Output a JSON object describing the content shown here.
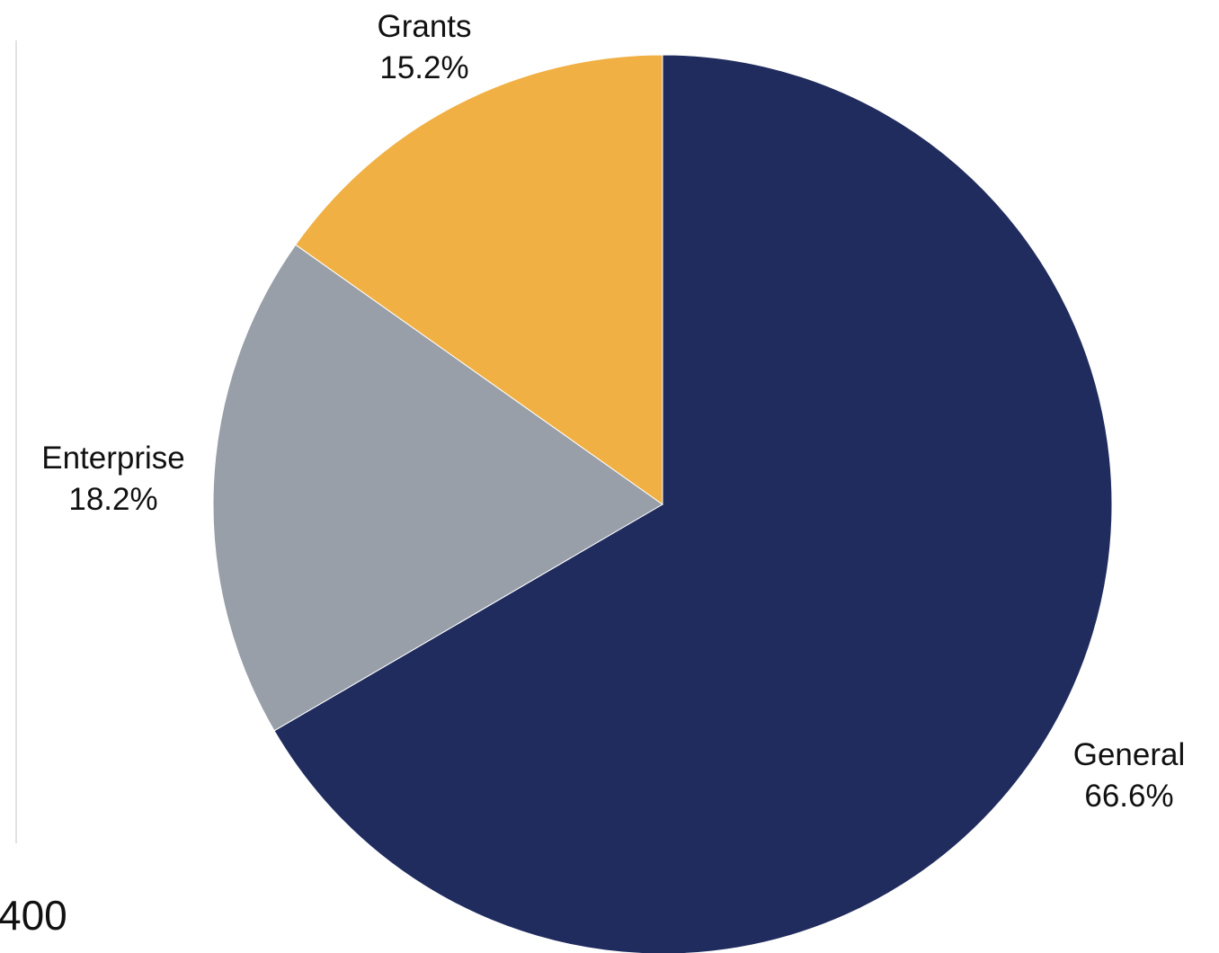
{
  "chart_data": {
    "type": "pie",
    "title": "",
    "start_angle_deg": 0,
    "direction": "clockwise",
    "slices": [
      {
        "label": "General",
        "value": 66.6,
        "value_label": "66.6%",
        "color": "#202c5e"
      },
      {
        "label": "Enterprise",
        "value": 18.2,
        "value_label": "18.2%",
        "color": "#989fa8"
      },
      {
        "label": "Grants",
        "value": 15.2,
        "value_label": "15.2%",
        "color": "#f0b044"
      }
    ],
    "partial_axis_tick": "400",
    "legend": "none"
  }
}
